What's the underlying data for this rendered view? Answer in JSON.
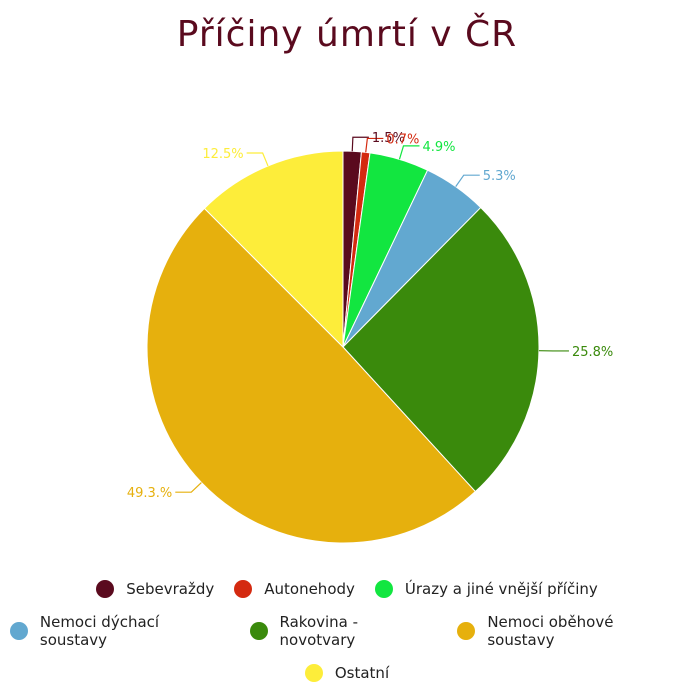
{
  "chart_data": {
    "type": "pie",
    "title": "Příčiny úmrtí v ČR",
    "slices": [
      {
        "name": "Sebevraždy",
        "value": 1.5,
        "label": "1.5%",
        "color": "#5a0a1e"
      },
      {
        "name": "Autonehody",
        "value": 0.7,
        "label": "0.7%",
        "color": "#d42a10"
      },
      {
        "name": "Úrazy a jiné vnější příčiny",
        "value": 4.9,
        "label": "4.9%",
        "color": "#12e640"
      },
      {
        "name": "Nemoci dýchací soustavy",
        "value": 5.3,
        "label": "5.3%",
        "color": "#62a8d0"
      },
      {
        "name": "Rakovina - novotvary",
        "value": 25.8,
        "label": "25.8%",
        "color": "#3a8a0c"
      },
      {
        "name": "Nemoci oběhové soustavy",
        "value": 49.3,
        "label": "49.3.%",
        "color": "#e6b00d"
      },
      {
        "name": "Ostatní",
        "value": 12.5,
        "label": "12.5%",
        "color": "#fded3a"
      }
    ],
    "legend_position": "bottom"
  }
}
